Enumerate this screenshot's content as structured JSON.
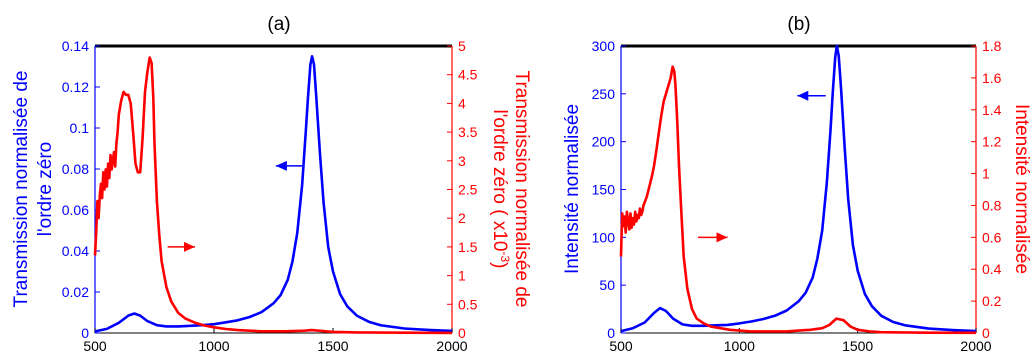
{
  "colors": {
    "left_axis": "#0000ff",
    "right_axis": "#ff0000",
    "frame": "#000000"
  },
  "chart_data": [
    {
      "type": "line",
      "title": "(a)",
      "ylabel": "Transmission normalisée de l'ordre zéro",
      "ylabel_lines": [
        "Transmission normalisée de",
        "l'ordre zéro"
      ],
      "y2label_lines": [
        "Transmission normalisée de",
        "l'ordre zéro  ( x10",
        "-3",
        ")"
      ],
      "xlim": [
        500,
        2000
      ],
      "ylim": [
        0,
        0.14
      ],
      "y2lim": [
        0,
        5
      ],
      "xticks": [
        "500",
        "1000",
        "1500",
        "2000"
      ],
      "yticks": [
        "0",
        "0.02",
        "0.04",
        "0.06",
        "0.08",
        "0.1",
        "0.12",
        "0.14"
      ],
      "y2ticks": [
        "0",
        "0.5",
        "1",
        "1.5",
        "2",
        "2.5",
        "3",
        "3.5",
        "4",
        "4.5",
        "5"
      ],
      "series": [
        {
          "axis": "left",
          "color": "#0000ff",
          "x": [
            500,
            550,
            600,
            640,
            665,
            690,
            720,
            760,
            800,
            850,
            900,
            950,
            1000,
            1050,
            1100,
            1150,
            1200,
            1250,
            1280,
            1310,
            1330,
            1350,
            1370,
            1385,
            1395,
            1405,
            1412,
            1420,
            1430,
            1445,
            1460,
            1480,
            1500,
            1530,
            1560,
            1600,
            1650,
            1700,
            1800,
            1900,
            2000
          ],
          "y": [
            0.0008,
            0.002,
            0.005,
            0.0085,
            0.0095,
            0.0085,
            0.0058,
            0.0038,
            0.0032,
            0.0032,
            0.0035,
            0.0038,
            0.0043,
            0.0052,
            0.0062,
            0.0078,
            0.0102,
            0.0145,
            0.0185,
            0.026,
            0.035,
            0.049,
            0.072,
            0.097,
            0.115,
            0.131,
            0.135,
            0.131,
            0.115,
            0.088,
            0.064,
            0.042,
            0.03,
            0.019,
            0.013,
            0.0085,
            0.0055,
            0.0038,
            0.0022,
            0.0015,
            0.001
          ]
        },
        {
          "axis": "right",
          "color": "#ff0000",
          "x": [
            500,
            505,
            510,
            515,
            520,
            525,
            530,
            535,
            540,
            545,
            550,
            555,
            560,
            565,
            570,
            575,
            580,
            585,
            590,
            595,
            600,
            610,
            620,
            630,
            640,
            650,
            660,
            670,
            680,
            690,
            700,
            710,
            720,
            730,
            738,
            745,
            750,
            760,
            770,
            780,
            800,
            820,
            850,
            880,
            920,
            960,
            1000,
            1050,
            1100,
            1150,
            1200,
            1300,
            1380,
            1410,
            1440,
            1500,
            1600,
            1800,
            2000
          ],
          "y": [
            1.35,
            1.75,
            2.3,
            2.0,
            2.4,
            2.6,
            2.35,
            2.8,
            2.5,
            2.85,
            2.55,
            2.95,
            2.7,
            3.1,
            2.85,
            3.0,
            3.15,
            2.9,
            3.3,
            3.5,
            3.8,
            4.05,
            4.2,
            4.15,
            4.15,
            4.0,
            3.5,
            2.95,
            2.8,
            2.8,
            3.4,
            4.2,
            4.55,
            4.8,
            4.7,
            4.1,
            3.3,
            2.3,
            1.7,
            1.25,
            0.8,
            0.55,
            0.35,
            0.25,
            0.18,
            0.13,
            0.1,
            0.07,
            0.05,
            0.04,
            0.03,
            0.03,
            0.04,
            0.05,
            0.04,
            0.02,
            0.01,
            0.005,
            0.002
          ]
        }
      ],
      "annotations": [
        {
          "type": "arrow",
          "color": "#0000ff",
          "from": [
            1375,
            0.0815
          ],
          "to": [
            1260,
            0.0815
          ]
        },
        {
          "type": "arrow",
          "color": "#ff0000",
          "axis": "right",
          "from": [
            805,
            1.5
          ],
          "to": [
            920,
            1.5
          ]
        }
      ]
    },
    {
      "type": "line",
      "title": "(b)",
      "ylabel": "Intensité normalisée",
      "y2label": "Intensité normalisée",
      "xlim": [
        500,
        2000
      ],
      "ylim": [
        0,
        300
      ],
      "y2lim": [
        0,
        1.8
      ],
      "xticks": [
        "500",
        "1000",
        "1500",
        "2000"
      ],
      "yticks": [
        "0",
        "50",
        "100",
        "150",
        "200",
        "250",
        "300"
      ],
      "y2ticks": [
        "0",
        "0.2",
        "0.4",
        "0.6",
        "0.8",
        "1",
        "1.2",
        "1.4",
        "1.6",
        "1.8"
      ],
      "series": [
        {
          "axis": "left",
          "color": "#0000ff",
          "x": [
            500,
            550,
            600,
            640,
            665,
            690,
            720,
            760,
            800,
            850,
            900,
            950,
            1000,
            1050,
            1100,
            1150,
            1200,
            1250,
            1280,
            1310,
            1330,
            1350,
            1370,
            1385,
            1395,
            1405,
            1412,
            1420,
            1430,
            1445,
            1460,
            1480,
            1500,
            1530,
            1560,
            1600,
            1650,
            1700,
            1800,
            1900,
            2000
          ],
          "y": [
            2,
            5,
            11,
            21,
            26,
            23,
            15,
            9,
            7.5,
            7.5,
            8,
            8.5,
            10,
            12,
            14.5,
            18,
            23.5,
            33,
            42,
            58,
            78,
            107,
            158,
            212,
            252,
            288,
            300,
            290,
            255,
            195,
            140,
            92,
            65,
            41,
            28,
            18,
            11.5,
            8,
            4.6,
            3,
            2
          ]
        },
        {
          "axis": "right",
          "color": "#ff0000",
          "x": [
            500,
            505,
            510,
            515,
            520,
            525,
            530,
            535,
            540,
            545,
            550,
            555,
            560,
            565,
            570,
            575,
            580,
            585,
            590,
            595,
            600,
            610,
            620,
            630,
            640,
            650,
            660,
            670,
            680,
            690,
            700,
            710,
            718,
            725,
            730,
            738,
            745,
            755,
            765,
            780,
            800,
            820,
            850,
            880,
            920,
            960,
            1000,
            1050,
            1100,
            1150,
            1200,
            1250,
            1300,
            1350,
            1380,
            1410,
            1440,
            1470,
            1500,
            1550,
            1600,
            1800,
            2000
          ],
          "y": [
            0.48,
            0.75,
            0.67,
            0.73,
            0.63,
            0.76,
            0.7,
            0.65,
            0.75,
            0.66,
            0.72,
            0.68,
            0.76,
            0.7,
            0.74,
            0.72,
            0.78,
            0.74,
            0.76,
            0.8,
            0.82,
            0.86,
            0.92,
            0.98,
            1.05,
            1.15,
            1.26,
            1.36,
            1.45,
            1.5,
            1.55,
            1.6,
            1.67,
            1.64,
            1.56,
            1.32,
            1.05,
            0.75,
            0.48,
            0.28,
            0.15,
            0.09,
            0.06,
            0.04,
            0.03,
            0.02,
            0.015,
            0.01,
            0.01,
            0.01,
            0.01,
            0.015,
            0.02,
            0.03,
            0.05,
            0.09,
            0.08,
            0.04,
            0.02,
            0.01,
            0.005,
            0.002,
            0.001
          ]
        }
      ],
      "annotations": [
        {
          "type": "arrow",
          "color": "#0000ff",
          "from": [
            1365,
            248
          ],
          "to": [
            1245,
            248
          ]
        },
        {
          "type": "arrow",
          "color": "#ff0000",
          "axis": "right",
          "from": [
            825,
            0.6
          ],
          "to": [
            950,
            0.6
          ]
        }
      ]
    }
  ]
}
